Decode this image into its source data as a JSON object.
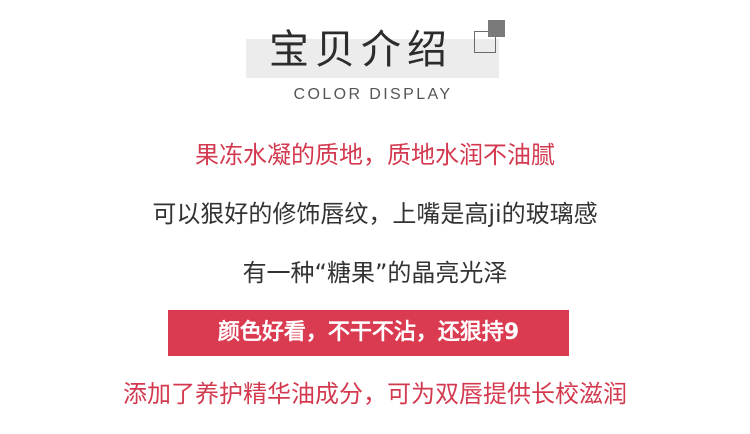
{
  "header": {
    "title": "宝贝介绍",
    "subtitle": "COLOR DISPLAY"
  },
  "lines": {
    "line1": "果冻水凝的质地，质地水润不油腻",
    "line2": "可以狠好的修饰唇纹，上嘴是高ji的玻璃感",
    "line3": "有一种“糖果”的晶亮光泽",
    "band": "颜色好看，不干不沾，还狠持9",
    "line5": "添加了养护精华油成分，可为双唇提供长校滋润"
  },
  "colors": {
    "accent_red": "#db3b50",
    "text_dark": "#333333",
    "title_bg": "#ececec"
  }
}
